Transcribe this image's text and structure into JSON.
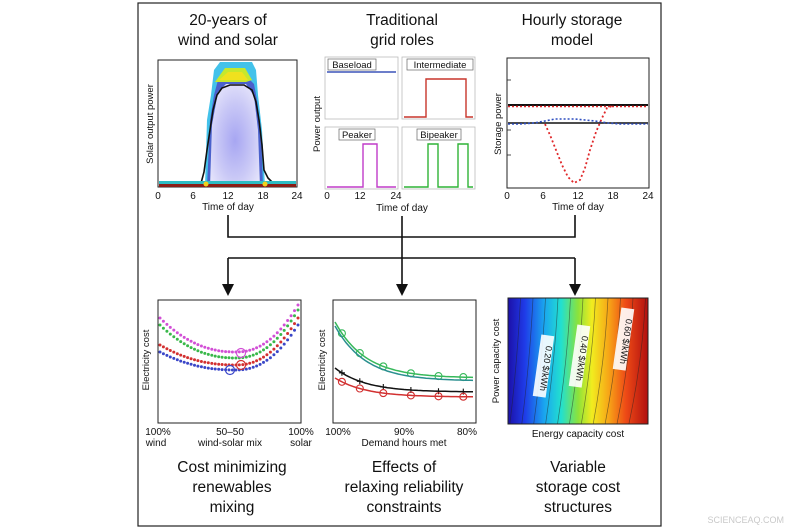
{
  "colors": {
    "frame": "#222222",
    "baseload": "#3b54b8",
    "intermediate": "#c8352b",
    "peaker": "#c03cc9",
    "bipeaker": "#2fb336",
    "storage_red": "#e0282a",
    "storage_blue": "#2f4fc0",
    "mix_magenta": "#d24fd6",
    "mix_green": "#39b84a",
    "mix_red": "#d33030",
    "mix_blue": "#3a46c8",
    "relax_green": "#36b85a",
    "relax_teal": "#2a8f8f",
    "relax_black": "#111111",
    "relax_red": "#d23030"
  },
  "top": {
    "panel1": {
      "title_line1": "20-years of",
      "title_line2": "wind and solar",
      "ylabel": "Solar output power",
      "xlabel": "Time of day",
      "xticks": [
        "0",
        "6",
        "12",
        "18",
        "24"
      ]
    },
    "panel2": {
      "title_line1": "Traditional",
      "title_line2": "grid roles",
      "ylabel": "Power output",
      "xlabel": "Time of day",
      "xticks": [
        "0",
        "12",
        "24"
      ],
      "sub_baseload": "Baseload",
      "sub_intermediate": "Intermediate",
      "sub_peaker": "Peaker",
      "sub_bipeaker": "Bipeaker"
    },
    "panel3": {
      "title_line1": "Hourly storage",
      "title_line2": "model",
      "ylabel": "Storage power",
      "xlabel": "Time of day",
      "xticks": [
        "0",
        "6",
        "12",
        "18",
        "24"
      ]
    }
  },
  "bottom": {
    "panel1": {
      "ylabel": "Electricity cost",
      "xlabel": "wind-solar mix",
      "x_left_line1": "100%",
      "x_left_line2": "wind",
      "x_mid": "50–50",
      "x_right_line1": "100%",
      "x_right_line2": "solar",
      "caption_line1": "Cost minimizing",
      "caption_line2": "renewables",
      "caption_line3": "mixing"
    },
    "panel2": {
      "ylabel": "Electricity cost",
      "xlabel": "Demand hours met",
      "xticks": [
        "100%",
        "90%",
        "80%"
      ],
      "caption_line1": "Effects of",
      "caption_line2": "relaxing reliability",
      "caption_line3": "constraints"
    },
    "panel3": {
      "ylabel": "Power capacity cost",
      "xlabel": "Energy capacity cost",
      "contour1": "0.20 $/kWh",
      "contour2": "0.40 $/kWh",
      "contour3": "0.60 $/kWh",
      "caption_line1": "Variable",
      "caption_line2": "storage cost",
      "caption_line3": "structures"
    }
  },
  "watermark": "SCIENCEAQ.COM"
}
